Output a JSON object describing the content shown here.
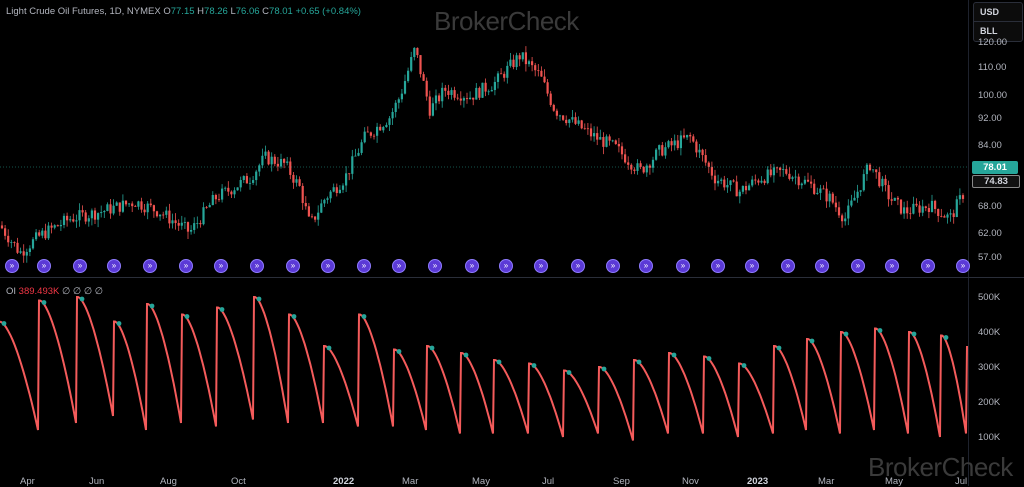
{
  "header": {
    "symbol_info": "Light Crude Oil Futures, 1D, NYMEX",
    "open_label": "O",
    "open": "77.15",
    "high_label": "H",
    "high": "78.26",
    "low_label": "L",
    "low": "76.06",
    "close_label": "C",
    "close": "78.01",
    "change": "+0.65 (+0.84%)"
  },
  "watermark": "BrokerCheck",
  "units": {
    "currency": "USD",
    "unit": "BLL"
  },
  "price_axis": {
    "ticks": [
      "120.00",
      "110.00",
      "100.00",
      "92.00",
      "84.00",
      "68.00",
      "62.00",
      "57.00"
    ],
    "last_price": "78.01",
    "prev_price": "74.83"
  },
  "oi_pane": {
    "label": "OI",
    "value": "389.493K",
    "placeholders": "∅ ∅ ∅ ∅",
    "ticks": [
      "500K",
      "400K",
      "300K",
      "200K",
      "100K"
    ]
  },
  "time_axis": {
    "labels": [
      "Apr",
      "Jun",
      "Aug",
      "Oct",
      "2022",
      "Mar",
      "May",
      "Jul",
      "Sep",
      "Nov",
      "2023",
      "Mar",
      "May",
      "Jul"
    ]
  },
  "rollover_icon": "roll-forward-icon",
  "colors": {
    "up": "#26a69a",
    "down": "#ef5350",
    "oi_line": "#f45b5b",
    "rollover": "#5b3ad6"
  },
  "chart_data": [
    {
      "type": "candlestick",
      "title": "",
      "ylim": [
        55,
        125
      ],
      "x": [
        "Apr",
        "Jun",
        "Aug",
        "Oct",
        "2022",
        "Mar",
        "May",
        "Jul",
        "Sep",
        "Nov",
        "2023",
        "Mar",
        "May",
        "Jul"
      ],
      "approx_close": [
        60,
        68,
        72,
        83,
        72,
        110,
        105,
        100,
        88,
        90,
        80,
        75,
        72,
        78
      ]
    },
    {
      "type": "line",
      "title": "",
      "series": [
        {
          "name": "OI",
          "values": [
            420,
            470,
            480,
            450,
            460,
            470,
            410,
            430,
            330,
            280,
            290,
            250,
            260,
            250,
            300,
            290,
            270,
            360,
            390,
            380,
            389.493
          ]
        }
      ],
      "ylim": [
        50,
        520
      ]
    }
  ]
}
